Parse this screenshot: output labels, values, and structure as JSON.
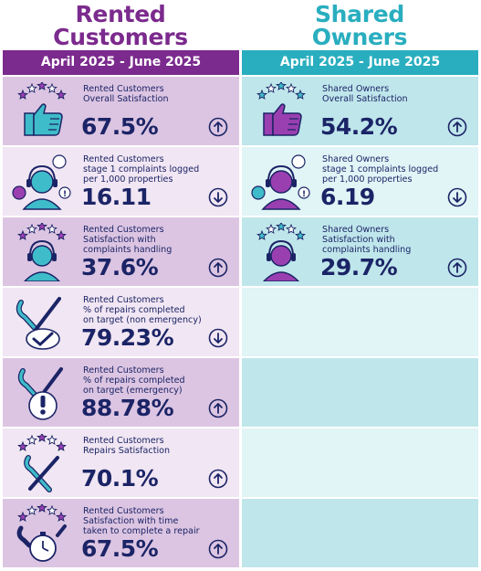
{
  "header": {
    "rented_title_line1": "Rented",
    "rented_title_line2": "Customers",
    "shared_title_line1": "Shared",
    "shared_title_line2": "Owners",
    "rented_period": "April 2025 - June 2025",
    "shared_period": "April 2025 - June 2025"
  },
  "colors": {
    "purple": "#7b2a8d",
    "teal": "#29aebf",
    "navy": "#1b2466"
  },
  "rented": [
    {
      "label_lines": [
        "Rented Customers",
        "Overall Satisfaction"
      ],
      "value": "67.5%",
      "trend": "up",
      "icon": "thumbs-up-icon"
    },
    {
      "label_lines": [
        "Rented Customers",
        "stage 1 complaints logged",
        "per 1,000 properties"
      ],
      "value": "16.11",
      "trend": "down",
      "icon": "complaints-headset-icon"
    },
    {
      "label_lines": [
        "Rented Customers",
        "Satisfaction with",
        "complaints handling"
      ],
      "value": "37.6%",
      "trend": "up",
      "icon": "headset-stars-icon"
    },
    {
      "label_lines": [
        "Rented Customers",
        "% of repairs completed",
        "on target (non emergency)"
      ],
      "value": "79.23%",
      "trend": "down",
      "icon": "tools-check-icon"
    },
    {
      "label_lines": [
        "Rented Customers",
        "% of repairs completed",
        "on target (emergency)"
      ],
      "value": "88.78%",
      "trend": "up",
      "icon": "tools-alert-icon"
    },
    {
      "label_lines": [
        "Rented Customers",
        "Repairs Satisfaction"
      ],
      "value": "70.1%",
      "trend": "up",
      "icon": "tools-stars-icon"
    },
    {
      "label_lines": [
        "Rented Customers",
        "Satisfaction with time",
        "taken to complete a repair"
      ],
      "value": "67.5%",
      "trend": "up",
      "icon": "stopwatch-tools-icon"
    }
  ],
  "shared": [
    {
      "label_lines": [
        "Shared Owners",
        "Overall Satisfaction"
      ],
      "value": "54.2%",
      "trend": "up",
      "icon": "thumbs-up-icon"
    },
    {
      "label_lines": [
        "Shared Owners",
        "stage 1 complaints logged",
        "per 1,000 properties"
      ],
      "value": "6.19",
      "trend": "down",
      "icon": "complaints-headset-icon"
    },
    {
      "label_lines": [
        "Shared Owners",
        "Satisfaction with",
        "complaints handling"
      ],
      "value": "29.7%",
      "trend": "up",
      "icon": "headset-stars-icon"
    }
  ]
}
